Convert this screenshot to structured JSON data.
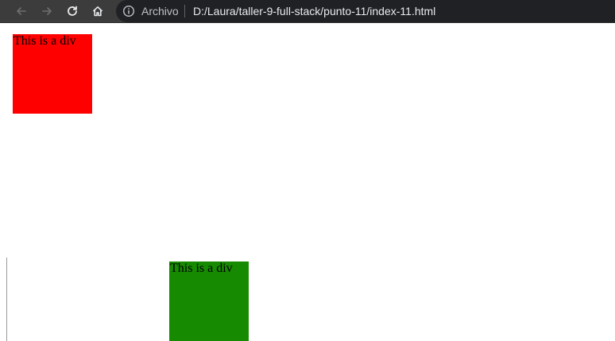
{
  "browser": {
    "security_label": "Archivo",
    "url": "D:/Laura/taller-9-full-stack/punto-11/index-11.html",
    "icons": {
      "back": "back-arrow-icon",
      "forward": "forward-arrow-icon",
      "reload": "reload-icon",
      "home": "home-icon",
      "info": "info-icon"
    }
  },
  "page": {
    "divs": [
      {
        "label": "This is a div",
        "color": "#ff0000"
      },
      {
        "label": "This is a div",
        "color": "#168a00"
      }
    ]
  }
}
